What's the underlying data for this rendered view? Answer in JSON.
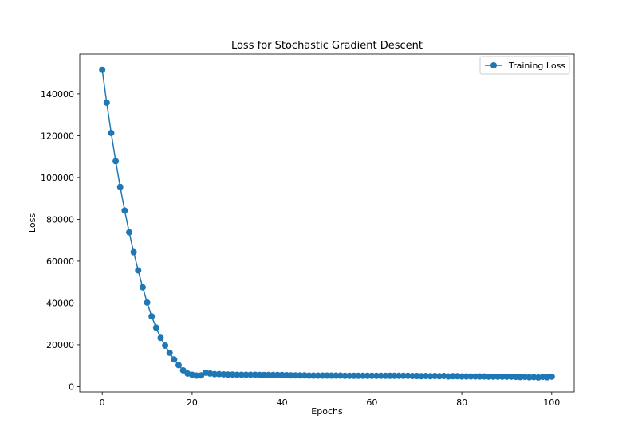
{
  "chart_data": {
    "type": "line",
    "title": "Loss for Stochastic Gradient Descent",
    "xlabel": "Epochs",
    "ylabel": "Loss",
    "xlim": [
      -5,
      105
    ],
    "ylim": [
      -2500,
      159000
    ],
    "xticks": [
      0,
      20,
      40,
      60,
      80,
      100
    ],
    "yticks": [
      0,
      20000,
      40000,
      60000,
      80000,
      100000,
      120000,
      140000
    ],
    "grid": false,
    "legend": "top-right",
    "series": [
      {
        "name": "Training Loss",
        "color": "#1f77b4",
        "marker": "circle",
        "x": [
          0,
          1,
          2,
          3,
          4,
          5,
          6,
          7,
          8,
          9,
          10,
          11,
          12,
          13,
          14,
          15,
          16,
          17,
          18,
          19,
          20,
          21,
          22,
          23,
          24,
          25,
          26,
          27,
          28,
          29,
          30,
          31,
          32,
          33,
          34,
          35,
          36,
          37,
          38,
          39,
          40,
          41,
          42,
          43,
          44,
          45,
          46,
          47,
          48,
          49,
          50,
          51,
          52,
          53,
          54,
          55,
          56,
          57,
          58,
          59,
          60,
          61,
          62,
          63,
          64,
          65,
          66,
          67,
          68,
          69,
          70,
          71,
          72,
          73,
          74,
          75,
          76,
          77,
          78,
          79,
          80,
          81,
          82,
          83,
          84,
          85,
          86,
          87,
          88,
          89,
          90,
          91,
          92,
          93,
          94,
          95,
          96,
          97,
          98,
          99,
          100
        ],
        "values": [
          151500,
          135800,
          121300,
          107800,
          95500,
          84200,
          73800,
          64300,
          55600,
          47500,
          40200,
          33600,
          28200,
          23300,
          19600,
          16200,
          13000,
          10300,
          7800,
          6300,
          5700,
          5300,
          5400,
          6700,
          6300,
          6000,
          6000,
          5900,
          5800,
          5800,
          5700,
          5700,
          5700,
          5700,
          5700,
          5600,
          5600,
          5600,
          5600,
          5600,
          5600,
          5500,
          5400,
          5400,
          5400,
          5400,
          5300,
          5300,
          5300,
          5300,
          5300,
          5300,
          5300,
          5300,
          5200,
          5200,
          5200,
          5200,
          5200,
          5200,
          5200,
          5200,
          5200,
          5200,
          5200,
          5200,
          5200,
          5200,
          5200,
          5100,
          5100,
          5000,
          5100,
          5000,
          5100,
          5000,
          5100,
          4900,
          5000,
          5000,
          4900,
          4900,
          4900,
          4900,
          4900,
          4900,
          4800,
          4800,
          4800,
          4800,
          4800,
          4800,
          4700,
          4600,
          4700,
          4500,
          4600,
          4400,
          4700,
          4500,
          4800
        ]
      }
    ]
  }
}
